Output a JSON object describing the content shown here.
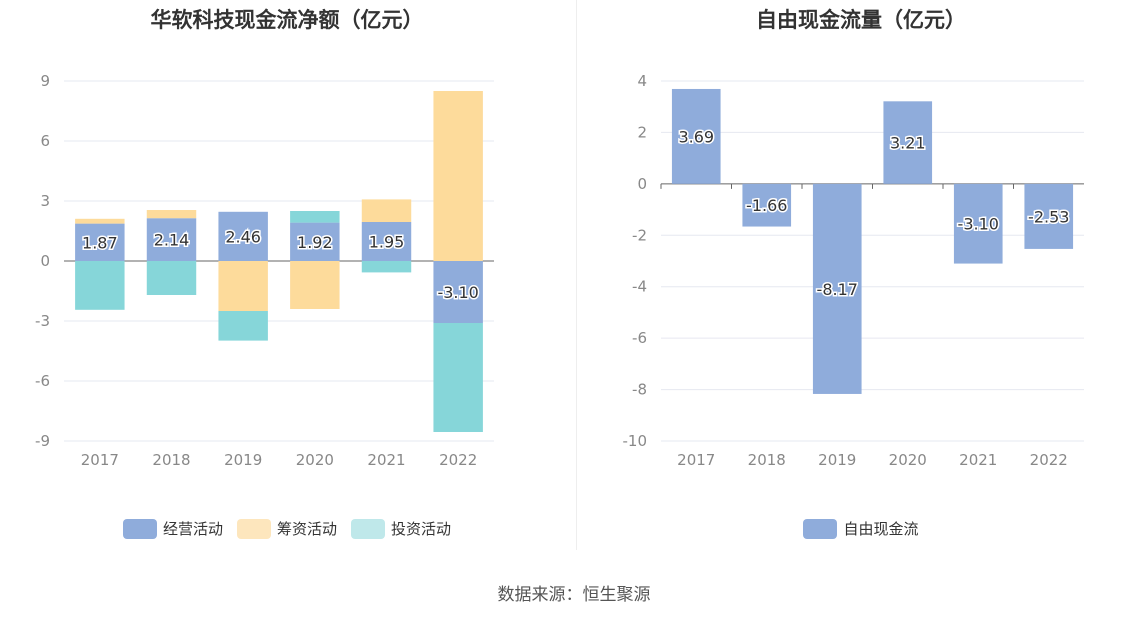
{
  "source": "数据来源：恒生聚源",
  "chart_data": [
    {
      "type": "bar",
      "stacked": true,
      "title": "华软科技现金流净额（亿元）",
      "categories": [
        "2017",
        "2018",
        "2019",
        "2020",
        "2021",
        "2022"
      ],
      "ylim": [
        -9,
        9
      ],
      "yticks": [
        9,
        6,
        3,
        0,
        -3,
        -6,
        -9
      ],
      "grid": true,
      "legend_position": "bottom",
      "series": [
        {
          "name": "经营活动",
          "color": "#8facdb",
          "values": [
            1.87,
            2.14,
            2.46,
            1.92,
            1.95,
            -3.1
          ],
          "labels": [
            "1.87",
            "2.14",
            "2.46",
            "1.92",
            "1.95",
            "-3.10"
          ]
        },
        {
          "name": "筹资活动",
          "color": "#fddb9b",
          "values": [
            0.24,
            0.41,
            -2.5,
            -2.4,
            1.13,
            8.5
          ]
        },
        {
          "name": "投资活动",
          "color": "#86d6d9",
          "values": [
            -2.44,
            -1.7,
            -1.48,
            0.58,
            -0.57,
            -5.45
          ]
        }
      ],
      "legend_colors": [
        "#8facdb",
        "#fde6bd",
        "#bfe8ea"
      ]
    },
    {
      "type": "bar",
      "title": "自由现金流量（亿元）",
      "categories": [
        "2017",
        "2018",
        "2019",
        "2020",
        "2021",
        "2022"
      ],
      "ylim": [
        -10,
        4
      ],
      "yticks": [
        4,
        2,
        0,
        -2,
        -4,
        -6,
        -8,
        -10
      ],
      "grid": true,
      "legend_position": "bottom",
      "series": [
        {
          "name": "自由现金流",
          "color": "#8facdb",
          "values": [
            3.69,
            -1.66,
            -8.17,
            3.21,
            -3.1,
            -2.53
          ],
          "labels": [
            "3.69",
            "-1.66",
            "-8.17",
            "3.21",
            "-3.10",
            "-2.53"
          ]
        }
      ],
      "legend_colors": [
        "#8facdb"
      ]
    }
  ]
}
